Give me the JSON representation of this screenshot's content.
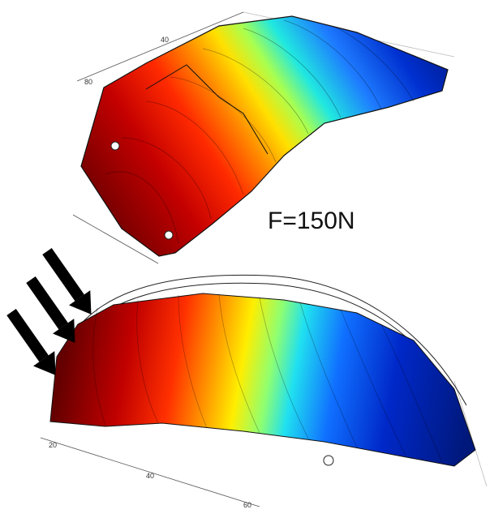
{
  "figure": {
    "label": "F=150N",
    "top_axis_ticks": [
      "80",
      "40"
    ],
    "bottom_axis_ticks": [
      "20",
      "40",
      "60"
    ]
  }
}
